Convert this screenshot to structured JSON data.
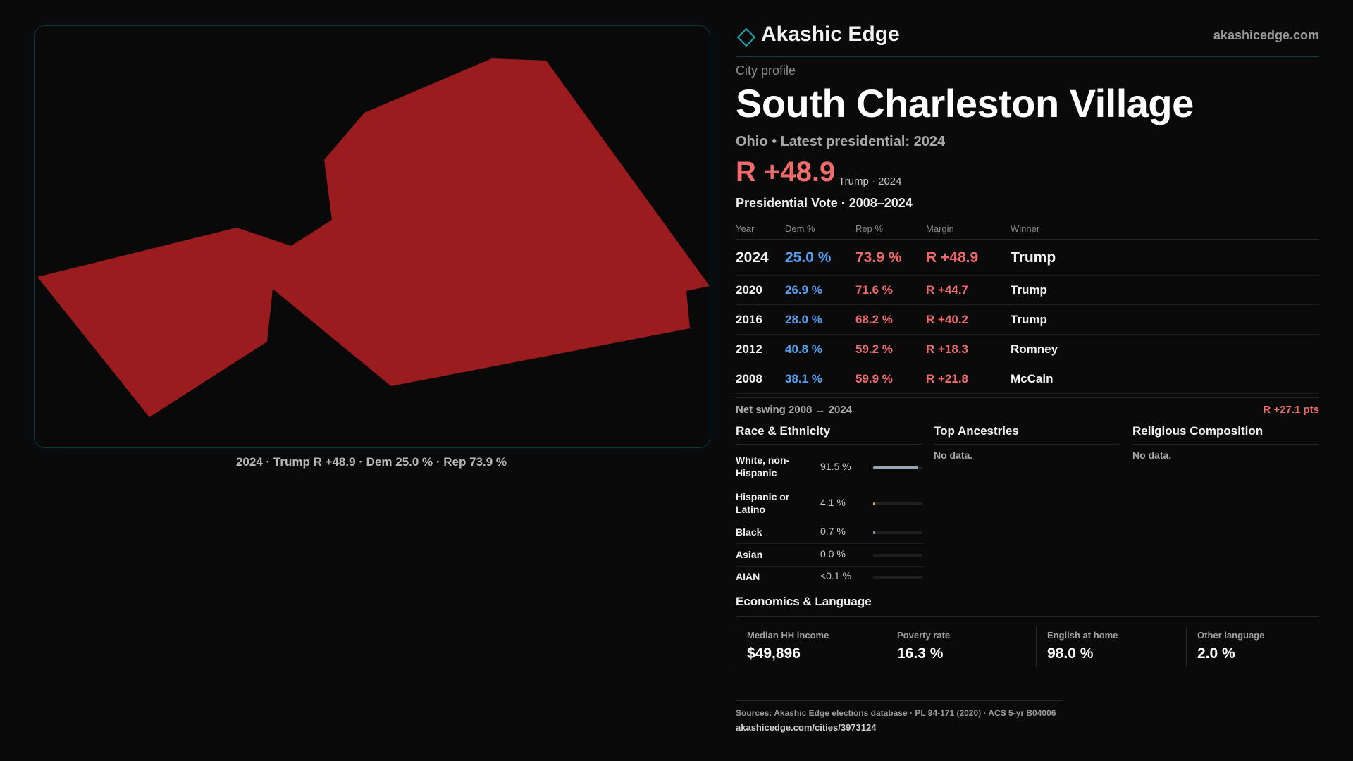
{
  "brand": {
    "name": "Akashic Edge",
    "url": "akashicedge.com"
  },
  "map": {
    "fill_color": "#9b1c1f",
    "caption": "2024 · Trump R +48.9 · Dem 25.0 % · Rep 73.9 %"
  },
  "profile": {
    "kicker": "City profile",
    "title": "South Charleston Village",
    "subtitle": "Ohio • Latest presidential: 2024",
    "margin": "R +48.9",
    "margin_note": "Trump · 2024"
  },
  "vote_table": {
    "title": "Presidential Vote · 2008–2024",
    "headers": {
      "year": "Year",
      "dem": "Dem %",
      "rep": "Rep %",
      "margin": "Margin",
      "winner": "Winner"
    },
    "rows": [
      {
        "year": "2024",
        "dem": "25.0 %",
        "rep": "73.9 %",
        "margin": "R +48.9",
        "winner": "Trump"
      },
      {
        "year": "2020",
        "dem": "26.9 %",
        "rep": "71.6 %",
        "margin": "R +44.7",
        "winner": "Trump"
      },
      {
        "year": "2016",
        "dem": "28.0 %",
        "rep": "68.2 %",
        "margin": "R +40.2",
        "winner": "Trump"
      },
      {
        "year": "2012",
        "dem": "40.8 %",
        "rep": "59.2 %",
        "margin": "R +18.3",
        "winner": "Romney"
      },
      {
        "year": "2008",
        "dem": "38.1 %",
        "rep": "59.9 %",
        "margin": "R +21.8",
        "winner": "McCain"
      }
    ],
    "swing_label": "Net swing 2008 → 2024",
    "swing_value": "R +27.1 pts"
  },
  "race": {
    "title": "Race & Ethnicity",
    "rows": [
      {
        "label": "White, non-Hispanic",
        "value": "91.5 %",
        "fraction": 0.915,
        "color": "#9aa6b8"
      },
      {
        "label": "Hispanic or Latino",
        "value": "4.1 %",
        "fraction": 0.041,
        "color": "#e0a53a"
      },
      {
        "label": "Black",
        "value": "0.7 %",
        "fraction": 0.007,
        "color": "#9aa6b8"
      },
      {
        "label": "Asian",
        "value": "0.0 %",
        "fraction": 0.0,
        "color": "#9aa6b8"
      },
      {
        "label": "AIAN",
        "value": "<0.1 %",
        "fraction": 0.0,
        "color": "#9aa6b8"
      }
    ]
  },
  "ancestries": {
    "title": "Top Ancestries",
    "empty": "No data."
  },
  "religion": {
    "title": "Religious Composition",
    "empty": "No data."
  },
  "economics": {
    "title": "Economics & Language",
    "cards": [
      {
        "label": "Median HH income",
        "value": "$49,896"
      },
      {
        "label": "Poverty rate",
        "value": "16.3 %"
      },
      {
        "label": "English at home",
        "value": "98.0 %"
      },
      {
        "label": "Other language",
        "value": "2.0 %"
      }
    ]
  },
  "sources": {
    "line1": "Sources: Akashic Edge elections database · PL 94-171 (2020) · ACS 5-yr B04006",
    "line2": "akashicedge.com/cities/3973124"
  },
  "colors": {
    "dem": "#5aa0f0",
    "rep": "#ef6b6b",
    "accent": "#1aa6b0"
  }
}
